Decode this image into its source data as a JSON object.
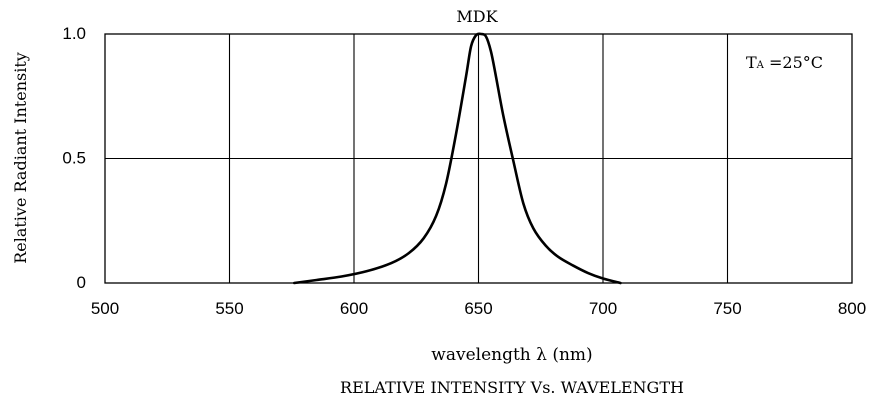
{
  "chart_data": {
    "type": "line",
    "title": "MDK",
    "caption": "RELATIVE  INTENSITY  Vs.  WAVELENGTH",
    "xlabel": "wavelength λ (nm)",
    "ylabel": "Relative  Radiant  Intensity",
    "annotation": {
      "main": "T",
      "sub": "A",
      "rest": " =25°C"
    },
    "xlim": [
      500,
      800
    ],
    "ylim": [
      0,
      1.0
    ],
    "x_ticks": [
      {
        "value": 500,
        "label": "500"
      },
      {
        "value": 550,
        "label": "550"
      },
      {
        "value": 600,
        "label": "600"
      },
      {
        "value": 650,
        "label": "650"
      },
      {
        "value": 700,
        "label": "700"
      },
      {
        "value": 750,
        "label": "750"
      },
      {
        "value": 800,
        "label": "800"
      }
    ],
    "y_ticks": [
      {
        "value": 0,
        "label": "0"
      },
      {
        "value": 0.5,
        "label": "0.5"
      },
      {
        "value": 1.0,
        "label": "1.0"
      }
    ],
    "grid": true,
    "series": [
      {
        "x": [
          576,
          585,
          595,
          605,
          615,
          622,
          628,
          633,
          637,
          641,
          645,
          647,
          649,
          651,
          653,
          655,
          657,
          660,
          664,
          668,
          672,
          677,
          682,
          688,
          694,
          700,
          707
        ],
        "y": [
          0.0,
          0.012,
          0.026,
          0.047,
          0.08,
          0.12,
          0.18,
          0.27,
          0.4,
          0.6,
          0.83,
          0.95,
          0.995,
          1.0,
          0.99,
          0.93,
          0.83,
          0.67,
          0.49,
          0.32,
          0.22,
          0.15,
          0.105,
          0.07,
          0.04,
          0.018,
          0.0
        ],
        "color": "#000000"
      }
    ]
  }
}
